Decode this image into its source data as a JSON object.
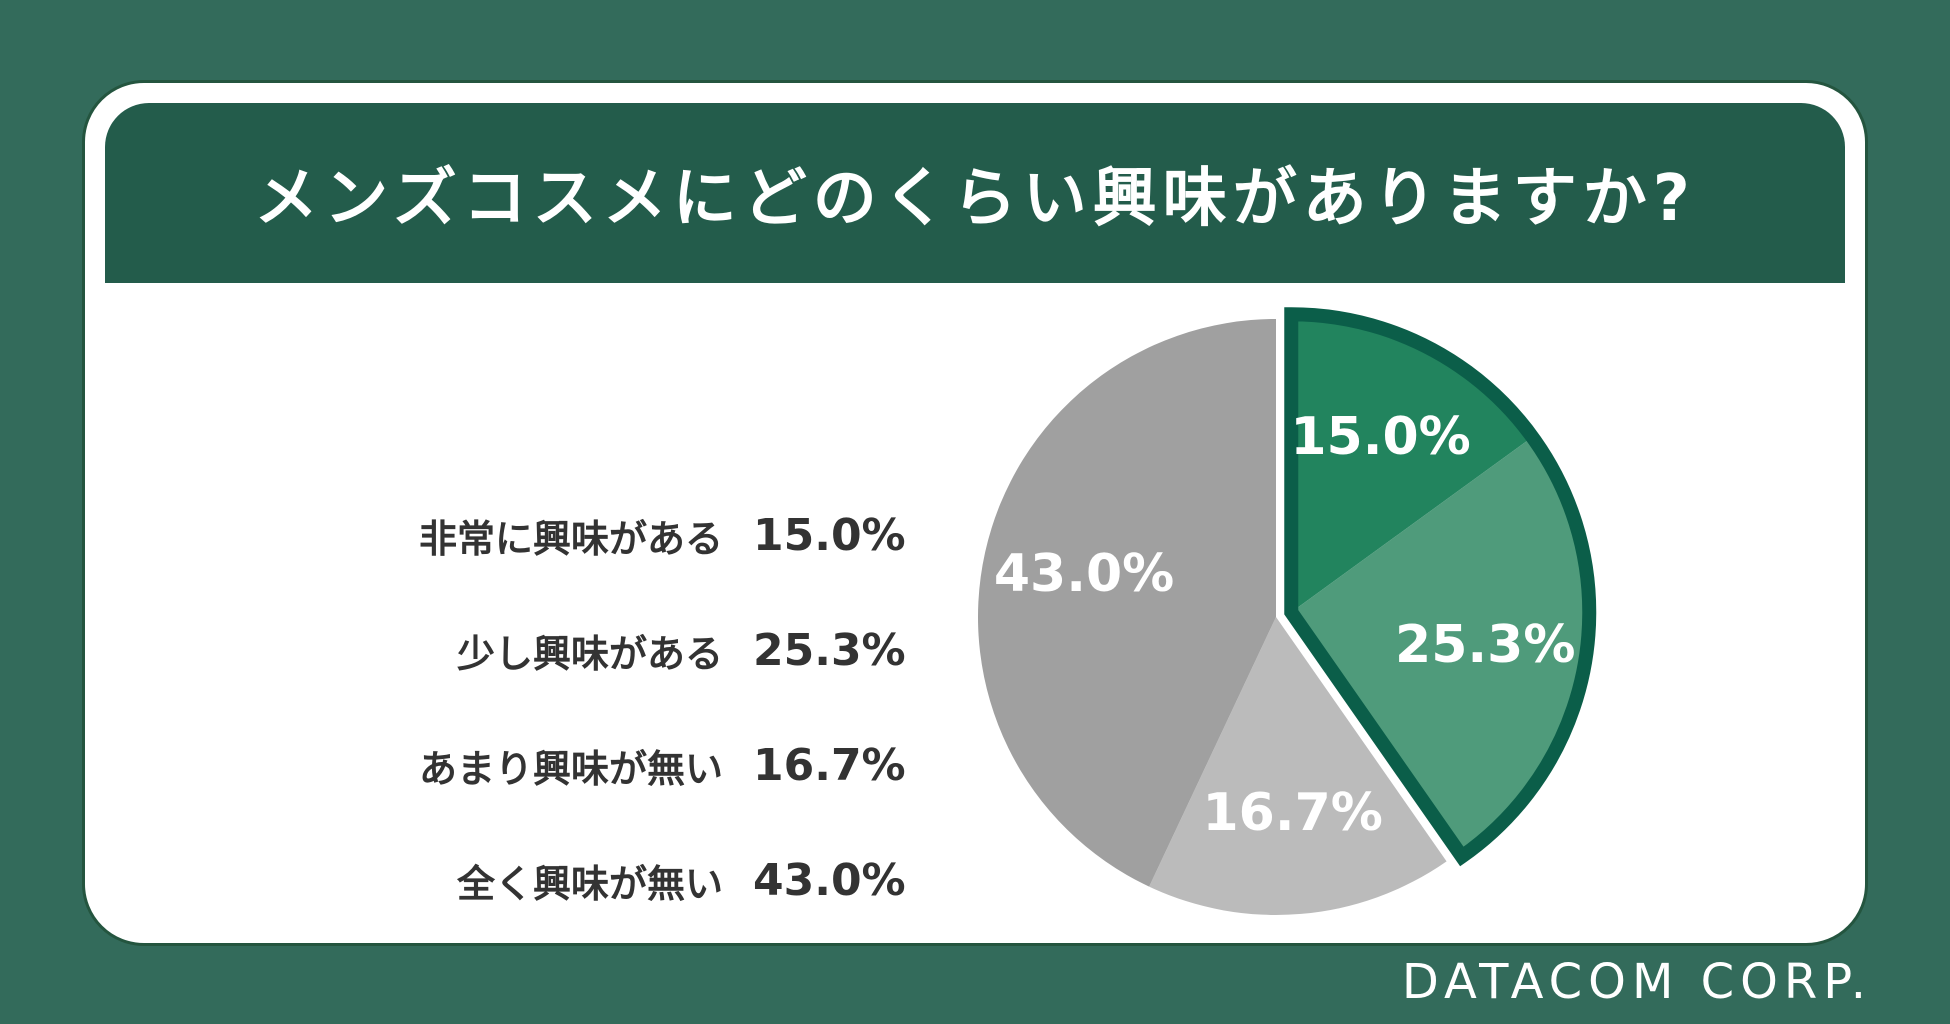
{
  "chart_data": {
    "type": "pie",
    "title": "メンズコスメにどのくらい興味がありますか?",
    "categories": [
      "非常に興味がある",
      "少し興味がある",
      "あまり興味が無い",
      "全く興味が無い"
    ],
    "values": [
      15.0,
      25.3,
      16.7,
      43.0
    ],
    "value_labels": [
      "15.0%",
      "25.3%",
      "16.7%",
      "43.0%"
    ],
    "colors": [
      "#22845e",
      "#4f9b7b",
      "#bbbbbb",
      "#a0a0a0"
    ],
    "highlight_color": "#0b5e49",
    "highlighted_categories": [
      "非常に興味がある",
      "少し興味がある"
    ]
  },
  "legend": {
    "items": [
      {
        "label": "非常に興味がある",
        "value": "15.0%"
      },
      {
        "label": "少し興味がある",
        "value": "25.3%"
      },
      {
        "label": "あまり興味が無い",
        "value": "16.7%"
      },
      {
        "label": "全く興味が無い",
        "value": "43.0%"
      }
    ]
  },
  "footer": {
    "brand": "DATACOM CORP."
  }
}
